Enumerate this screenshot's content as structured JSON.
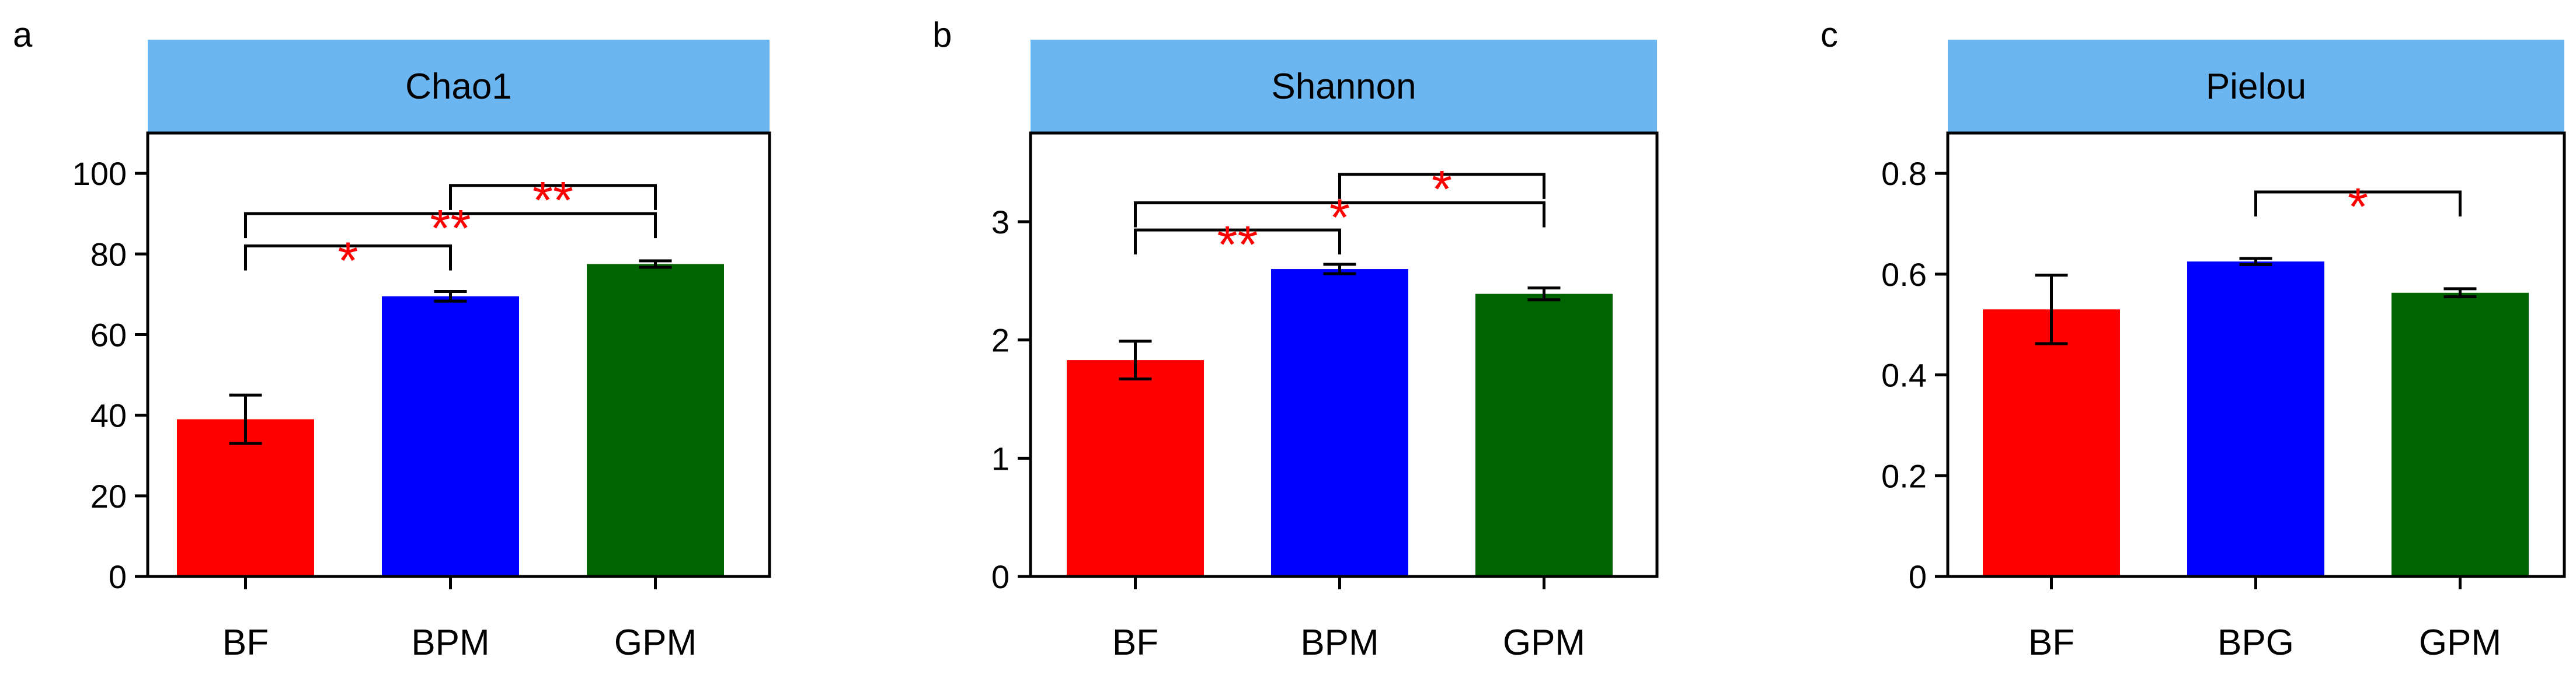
{
  "colors": {
    "BF": "#ff0000",
    "BPM": "#0000ff",
    "BPG": "#0000ff",
    "GPM": "#006400",
    "strip": "#6bb6f1",
    "significance": "#ff0000"
  },
  "chart_data": [
    {
      "panel": "a",
      "type": "bar",
      "title": "Chao1",
      "xlabel": "",
      "ylabel": "",
      "categories": [
        "BF",
        "BPM",
        "GPM"
      ],
      "values": [
        39,
        69.5,
        77.5
      ],
      "errors": [
        6,
        1.2,
        0.8
      ],
      "ylim": [
        0,
        110
      ],
      "yticks": [
        0,
        20,
        40,
        60,
        80,
        100
      ],
      "ytick_labels": [
        "0",
        "20",
        "40",
        "60",
        "80",
        "100"
      ],
      "grid": false,
      "significance": [
        {
          "from": 0,
          "to": 1,
          "y": 82,
          "label": "*"
        },
        {
          "from": 0,
          "to": 2,
          "y": 90,
          "label": "**"
        },
        {
          "from": 1,
          "to": 2,
          "y": 97,
          "label": "**"
        }
      ]
    },
    {
      "panel": "b",
      "type": "bar",
      "title": "Shannon",
      "xlabel": "",
      "ylabel": "",
      "categories": [
        "BF",
        "BPM",
        "GPM"
      ],
      "values": [
        1.83,
        2.6,
        2.39
      ],
      "errors": [
        0.16,
        0.04,
        0.05
      ],
      "ylim": [
        0,
        3.75
      ],
      "yticks": [
        0,
        1,
        2,
        3
      ],
      "ytick_labels": [
        "0",
        "1",
        "2",
        "3"
      ],
      "grid": false,
      "significance": [
        {
          "from": 0,
          "to": 1,
          "y": 2.93,
          "label": "**"
        },
        {
          "from": 0,
          "to": 2,
          "y": 3.16,
          "label": "*"
        },
        {
          "from": 1,
          "to": 2,
          "y": 3.4,
          "label": "*"
        }
      ]
    },
    {
      "panel": "c",
      "type": "bar",
      "title": "Pielou",
      "xlabel": "",
      "ylabel": "",
      "categories": [
        "BF",
        "BPG",
        "GPM"
      ],
      "values": [
        0.53,
        0.625,
        0.563
      ],
      "errors": [
        0.068,
        0.006,
        0.008
      ],
      "ylim": [
        0,
        0.88
      ],
      "yticks": [
        0,
        0.2,
        0.4,
        0.6,
        0.8
      ],
      "ytick_labels": [
        "0",
        "0.2",
        "0.4",
        "0.6",
        "0.8"
      ],
      "grid": false,
      "significance": [
        {
          "from": 1,
          "to": 2,
          "y": 0.763,
          "label": "*"
        }
      ]
    }
  ]
}
